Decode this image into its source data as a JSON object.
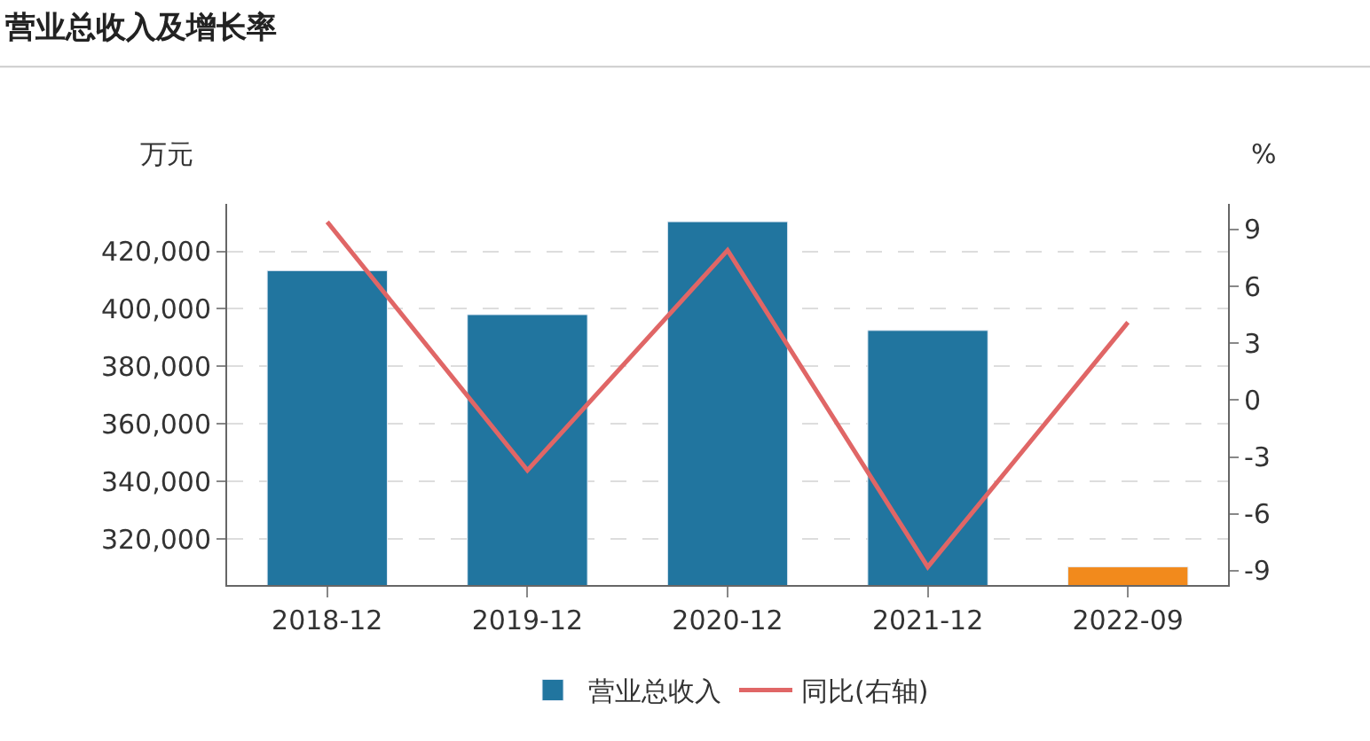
{
  "chart_data": {
    "type": "bar",
    "title": "营业总收入及增长率",
    "ylabel": "万元",
    "y2label": "%",
    "categories": [
      "2018-12",
      "2019-12",
      "2020-12",
      "2021-12",
      "2022-09"
    ],
    "series": [
      {
        "name": "营业总收入",
        "color": "#21759f",
        "colors": [
          "#21759f",
          "#21759f",
          "#21759f",
          "#21759f",
          "#f28a1c"
        ],
        "values": [
          413300,
          398000,
          430300,
          392500,
          310300
        ]
      },
      {
        "name": "同比(右轴)",
        "type": "line",
        "axis": "y2",
        "color": "#e06666",
        "values": [
          9.4,
          -3.7,
          7.9,
          -8.8,
          4.1
        ]
      }
    ],
    "ylim": [
      304000,
      436500
    ],
    "yticks": [
      {
        "value": 320000,
        "label": "320,000"
      },
      {
        "value": 340000,
        "label": "340,000"
      },
      {
        "value": 360000,
        "label": "360,000"
      },
      {
        "value": 380000,
        "label": "380,000"
      },
      {
        "value": 400000,
        "label": "400,000"
      },
      {
        "value": 420000,
        "label": "420,000"
      }
    ],
    "y2lim": [
      -9.75,
      10.35
    ],
    "y2ticks": [
      -9,
      -6,
      -3,
      0,
      3,
      6,
      9
    ],
    "grid": "y",
    "legend": "bottom",
    "marker": "none",
    "line_style": "solid"
  }
}
